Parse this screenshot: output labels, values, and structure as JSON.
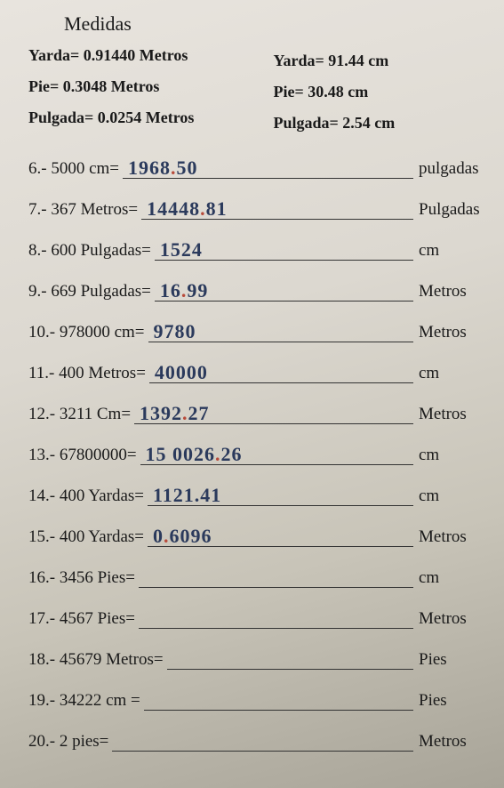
{
  "title": "Medidas",
  "conversions": {
    "left": [
      "Yarda= 0.91440 Metros",
      "Pie= 0.3048 Metros",
      "Pulgada= 0.0254  Metros"
    ],
    "right": [
      "Yarda= 91.44 cm",
      "Pie= 30.48 cm",
      "Pulgada= 2.54 cm"
    ]
  },
  "problems": [
    {
      "prompt": "6.- 5000 cm=",
      "answer": "1968.50",
      "unit": "pulgadas",
      "red_dot": true
    },
    {
      "prompt": "7.- 367 Metros=",
      "answer": "14448.81",
      "unit": "Pulgadas",
      "red_dot": true
    },
    {
      "prompt": "8.- 600 Pulgadas=",
      "answer": "1524",
      "unit": "cm",
      "red_dot": false
    },
    {
      "prompt": "9.- 669 Pulgadas=",
      "answer": "16.99",
      "unit": "Metros",
      "red_dot": true
    },
    {
      "prompt": "10.- 978000 cm=",
      "answer": "9780",
      "unit": "Metros",
      "red_dot": false
    },
    {
      "prompt": "11.- 400 Metros=",
      "answer": "40000",
      "unit": "cm",
      "red_dot": false
    },
    {
      "prompt": "12.- 3211 Cm=",
      "answer": "1392.27",
      "unit": "Metros",
      "red_dot": true
    },
    {
      "prompt": "13.- 67800000=",
      "answer": "15 0026.26",
      "unit": "cm",
      "red_dot": true
    },
    {
      "prompt": "14.- 400 Yardas=",
      "answer": "1121.41",
      "unit": "cm",
      "red_dot": false
    },
    {
      "prompt": "15.- 400 Yardas=",
      "answer": "0.6096",
      "unit": "Metros",
      "red_dot": true
    },
    {
      "prompt": "16.- 3456 Pies=",
      "answer": "",
      "unit": "cm",
      "red_dot": false
    },
    {
      "prompt": "17.- 4567 Pies=",
      "answer": "",
      "unit": "Metros",
      "red_dot": false
    },
    {
      "prompt": "18.- 45679 Metros=",
      "answer": "",
      "unit": "Pies",
      "red_dot": false
    },
    {
      "prompt": "19.- 34222 cm =",
      "answer": "",
      "unit": "Pies",
      "red_dot": false
    },
    {
      "prompt": "20.- 2 pies=",
      "answer": "",
      "unit": "Metros",
      "red_dot": false
    }
  ]
}
